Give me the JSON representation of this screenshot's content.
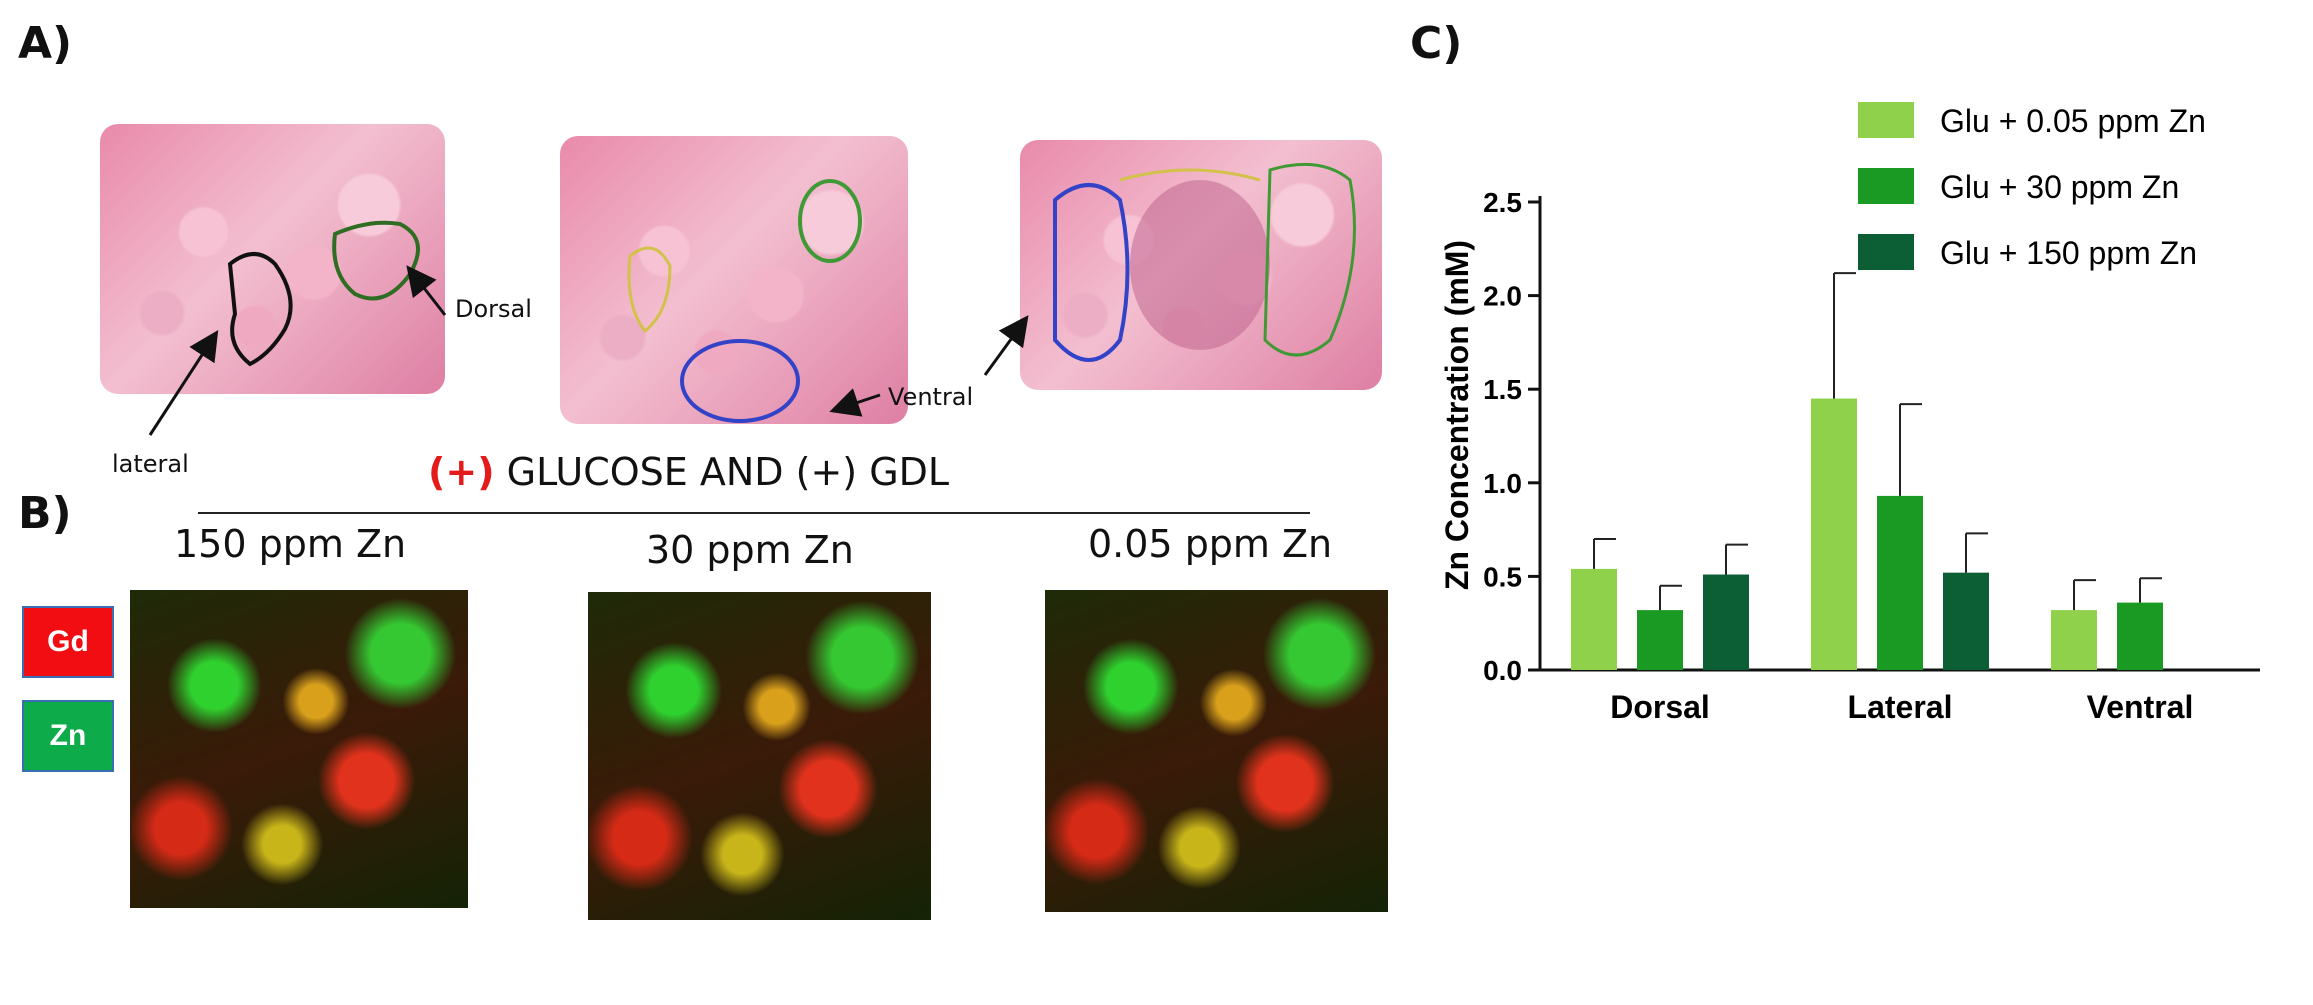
{
  "panels": {
    "a_label": "A)",
    "b_label": "B)",
    "c_label": "C)"
  },
  "panel_a": {
    "label_lateral": "lateral",
    "label_dorsal": "Dorsal",
    "label_ventral": "Ventral"
  },
  "panel_b": {
    "title_plus": "(+)",
    "title_rest": "GLUCOSE AND (+) GDL",
    "images": [
      {
        "caption": "150 ppm Zn"
      },
      {
        "caption": "30 ppm Zn"
      },
      {
        "caption": "0.05 ppm Zn"
      }
    ],
    "legend": [
      {
        "label": "Gd",
        "color": "#f20d12"
      },
      {
        "label": "Zn",
        "color": "#0eab4b"
      }
    ],
    "title_plus_color": "#e31b1b"
  },
  "chart_data": {
    "type": "bar",
    "categories": [
      "Dorsal",
      "Lateral",
      "Ventral"
    ],
    "series": [
      {
        "name": "Glu + 0.05 ppm Zn",
        "color": "#8fd14a",
        "values": [
          0.54,
          1.45,
          0.32
        ],
        "errors": [
          0.16,
          0.67,
          0.16
        ]
      },
      {
        "name": "Glu + 30 ppm Zn",
        "color": "#1a9a22",
        "values": [
          0.32,
          0.93,
          0.36
        ],
        "errors": [
          0.13,
          0.49,
          0.13
        ]
      },
      {
        "name": "Glu + 150 ppm Zn",
        "color": "#0c5e35",
        "values": [
          0.51,
          0.52,
          null
        ],
        "errors": [
          0.16,
          0.21,
          null
        ]
      }
    ],
    "ylabel": "Zn Concentration (mM)",
    "xlabel": "",
    "ylim": [
      0,
      2.5
    ],
    "yticks": [
      "0.0",
      "0.5",
      "1.0",
      "1.5",
      "2.0",
      "2.5"
    ],
    "ytick_values": [
      0,
      0.5,
      1.0,
      1.5,
      2.0,
      2.5
    ],
    "grid": false,
    "legend_position": "top-right"
  }
}
